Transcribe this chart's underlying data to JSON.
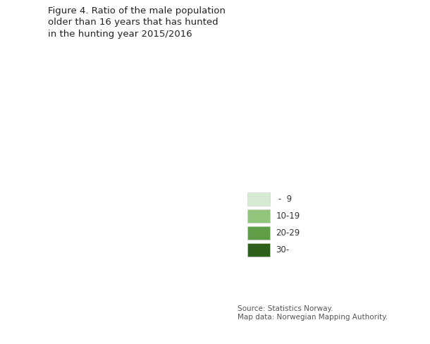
{
  "title_line1": "Figure 4. Ratio of the male population",
  "title_line2": "older than 16 years that has hunted",
  "title_line3": "in the hunting year 2015/2016",
  "title_fontsize": 9.5,
  "legend_labels": [
    " -  9",
    "10-19",
    "20-29",
    "30-"
  ],
  "legend_colors": [
    "#d5ead0",
    "#92c57b",
    "#5f9e46",
    "#2b5f1a"
  ],
  "source_text": "Source: Statistics Norway.\nMap data: Norwegian Mapping Authority.",
  "source_fontsize": 7.5,
  "background_color": "#ffffff",
  "figsize": [
    6.1,
    4.88
  ],
  "dpi": 100,
  "map_edge_color": "#ffffff",
  "map_linewidth": 0.4,
  "xlim": [
    4.5,
    31.5
  ],
  "ylim": [
    57.5,
    71.5
  ]
}
